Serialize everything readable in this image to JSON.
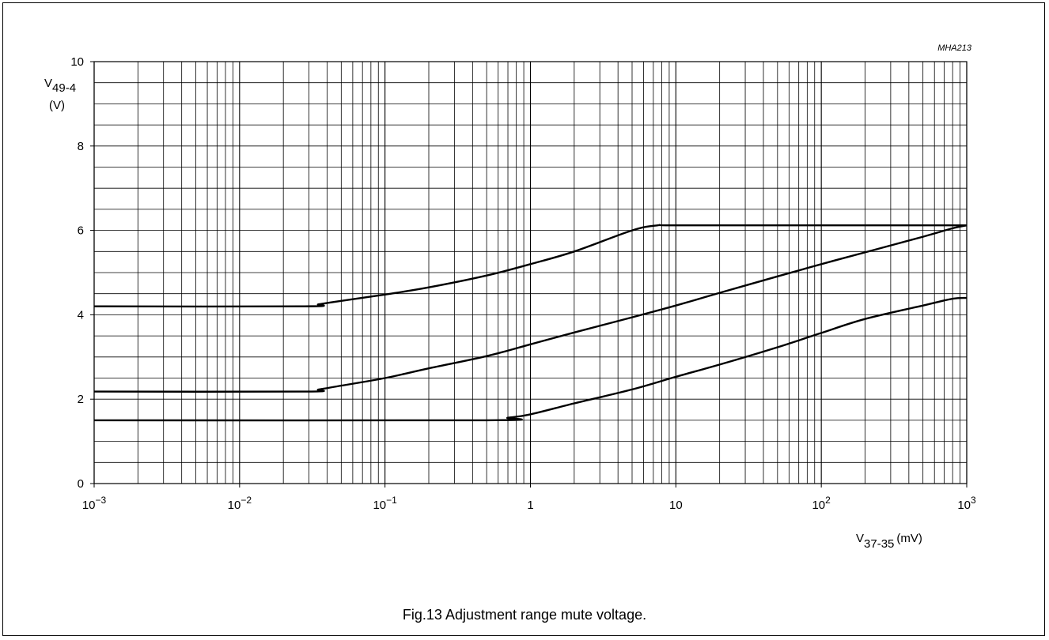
{
  "figure": {
    "code": "MHA213",
    "caption": "Fig.13  Adjustment range mute voltage."
  },
  "chart_data": {
    "type": "line",
    "x_scale": "log",
    "y_scale": "linear",
    "xlim": [
      0.001,
      1000
    ],
    "ylim": [
      0,
      10
    ],
    "grid": true,
    "y_axis": {
      "symbol": "V",
      "subscript": "49-4",
      "unit": "(V)"
    },
    "x_axis": {
      "symbol": "V",
      "subscript": "37-35",
      "unit": "(mV)"
    },
    "y_ticks": [
      {
        "value": 0,
        "label": "0"
      },
      {
        "value": 2,
        "label": "2"
      },
      {
        "value": 4,
        "label": "4"
      },
      {
        "value": 6,
        "label": "6"
      },
      {
        "value": 8,
        "label": "8"
      },
      {
        "value": 10,
        "label": "10"
      }
    ],
    "x_ticks": [
      {
        "value": 0.001,
        "base": "10",
        "exp": "−3"
      },
      {
        "value": 0.01,
        "base": "10",
        "exp": "−2"
      },
      {
        "value": 0.1,
        "base": "10",
        "exp": "−1"
      },
      {
        "value": 1,
        "base": "1",
        "exp": ""
      },
      {
        "value": 10,
        "base": "10",
        "exp": ""
      },
      {
        "value": 100,
        "base": "10",
        "exp": "2"
      },
      {
        "value": 1000,
        "base": "10",
        "exp": "3"
      }
    ],
    "series": [
      {
        "x": [
          0.001,
          0.028,
          0.035,
          0.05,
          0.1,
          0.2,
          0.5,
          1,
          2,
          5,
          7.5,
          10,
          100,
          1000
        ],
        "y": [
          4.2,
          4.2,
          4.25,
          4.33,
          4.48,
          4.65,
          4.93,
          5.2,
          5.5,
          6.0,
          6.12,
          6.12,
          6.12,
          6.12
        ]
      },
      {
        "x": [
          0.001,
          0.028,
          0.035,
          0.05,
          0.1,
          0.2,
          0.5,
          1,
          2,
          5,
          10,
          20,
          50,
          100,
          200,
          500,
          800,
          1000
        ],
        "y": [
          2.18,
          2.18,
          2.23,
          2.32,
          2.5,
          2.73,
          3.02,
          3.3,
          3.58,
          3.94,
          4.22,
          4.52,
          4.91,
          5.2,
          5.48,
          5.85,
          6.05,
          6.12
        ]
      },
      {
        "x": [
          0.001,
          0.5,
          0.7,
          1,
          2,
          5,
          10,
          20,
          50,
          100,
          200,
          500,
          800,
          1000
        ],
        "y": [
          1.5,
          1.5,
          1.56,
          1.64,
          1.9,
          2.23,
          2.53,
          2.82,
          3.23,
          3.57,
          3.9,
          4.22,
          4.38,
          4.4
        ]
      }
    ]
  }
}
